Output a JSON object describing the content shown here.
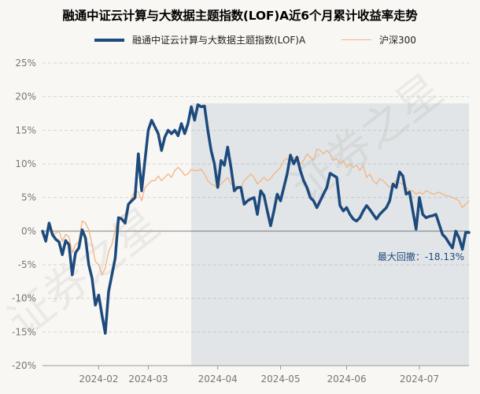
{
  "chart_data": {
    "type": "line",
    "title": "融通中证云计算与大数据主题指数(LOF)A近6个月累计收益率走势",
    "y_unit": "%",
    "ylim": [
      -20,
      25
    ],
    "yticks": [
      {
        "value": 25,
        "label": "25%"
      },
      {
        "value": 20,
        "label": "20%"
      },
      {
        "value": 15,
        "label": "15%"
      },
      {
        "value": 10,
        "label": "10%"
      },
      {
        "value": 5,
        "label": "5%"
      },
      {
        "value": 0,
        "label": "0%"
      },
      {
        "value": -5,
        "label": "-5%"
      },
      {
        "value": -10,
        "label": "-10%"
      },
      {
        "value": -15,
        "label": "-15%"
      },
      {
        "value": -20,
        "label": "-20%"
      }
    ],
    "n_points": 130,
    "xticks": [
      {
        "index": 17,
        "label": "2024-02"
      },
      {
        "index": 32,
        "label": "2024-03"
      },
      {
        "index": 53,
        "label": "2024-04"
      },
      {
        "index": 72,
        "label": "2024-05"
      },
      {
        "index": 92,
        "label": "2024-06"
      },
      {
        "index": 114,
        "label": "2024-07"
      }
    ],
    "drawdown": {
      "label": "最大回撤：-18.13%",
      "start_index": 45,
      "end_index": 130
    },
    "series": [
      {
        "name": "融通中证云计算与大数据主题指数(LOF)A",
        "color": "#1d4a7c",
        "values": [
          0.0,
          -1.5,
          1.2,
          -0.5,
          -1.2,
          -1.6,
          -3.5,
          -1.4,
          -2.0,
          -6.5,
          -3.2,
          -2.5,
          0.2,
          -1.0,
          -5.0,
          -7.0,
          -11.0,
          -9.5,
          -12.5,
          -15.2,
          -9.0,
          -6.5,
          -4.0,
          2.0,
          1.8,
          1.2,
          4.0,
          4.5,
          5.0,
          11.5,
          6.0,
          10.5,
          15.0,
          16.5,
          15.5,
          14.5,
          12.0,
          14.0,
          15.0,
          14.5,
          15.0,
          14.2,
          16.0,
          14.5,
          16.0,
          18.5,
          16.5,
          18.8,
          18.5,
          18.6,
          15.0,
          12.0,
          10.0,
          6.5,
          10.5,
          9.8,
          12.5,
          9.5,
          6.0,
          6.5,
          6.5,
          4.0,
          4.5,
          4.8,
          5.0,
          2.5,
          6.0,
          5.3,
          3.0,
          0.8,
          3.0,
          5.5,
          4.5,
          6.5,
          8.5,
          11.3,
          10.0,
          11.0,
          9.0,
          7.5,
          6.5,
          5.0,
          4.5,
          3.5,
          4.5,
          5.5,
          6.5,
          8.6,
          8.3,
          8.0,
          3.8,
          3.0,
          3.5,
          2.5,
          1.8,
          1.5,
          2.0,
          3.0,
          3.8,
          3.2,
          2.5,
          1.8,
          2.5,
          3.0,
          3.5,
          4.5,
          7.0,
          6.5,
          8.8,
          8.2,
          5.5,
          5.8,
          3.0,
          0.3,
          5.0,
          2.5,
          2.0,
          2.2,
          2.3,
          2.5,
          1.0,
          -0.5,
          -1.0,
          -1.8,
          -2.5,
          0.0,
          -1.0,
          -2.7,
          -0.2,
          -0.2
        ]
      },
      {
        "name": "沪深300",
        "color": "#f2b483",
        "values": [
          0.0,
          -0.8,
          0.5,
          -0.5,
          -0.3,
          0.0,
          -1.5,
          -0.5,
          -0.8,
          -3.2,
          -2.0,
          -1.6,
          1.5,
          1.2,
          0.2,
          -2.0,
          -4.5,
          -5.0,
          -6.5,
          -5.5,
          -3.0,
          -2.0,
          0.2,
          2.0,
          2.2,
          2.5,
          4.0,
          5.0,
          6.0,
          5.8,
          4.5,
          6.5,
          7.0,
          7.5,
          7.5,
          8.2,
          7.5,
          8.0,
          8.5,
          8.0,
          9.0,
          9.5,
          9.0,
          8.3,
          8.5,
          9.2,
          9.0,
          9.0,
          9.2,
          8.5,
          7.5,
          7.0,
          6.8,
          6.5,
          7.0,
          7.5,
          8.0,
          7.0,
          6.8,
          6.5,
          6.5,
          7.5,
          8.0,
          8.5,
          8.0,
          7.0,
          7.5,
          8.0,
          7.5,
          7.8,
          8.5,
          9.0,
          9.5,
          10.5,
          10.8,
          10.5,
          11.0,
          10.5,
          10.0,
          10.5,
          11.5,
          11.0,
          10.5,
          12.2,
          12.0,
          11.5,
          12.0,
          11.5,
          10.5,
          10.8,
          10.0,
          10.5,
          9.5,
          10.0,
          9.5,
          9.8,
          9.0,
          9.8,
          8.0,
          8.5,
          7.5,
          7.0,
          7.8,
          7.5,
          7.0,
          6.5,
          7.0,
          7.5,
          7.2,
          7.0,
          6.5,
          6.0,
          6.0,
          5.5,
          5.8,
          5.5,
          6.0,
          5.8,
          5.5,
          5.6,
          5.8,
          5.5,
          5.3,
          5.2,
          5.0,
          4.8,
          4.5,
          3.5,
          4.0,
          4.5
        ]
      }
    ]
  },
  "watermark": [
    "证券之星",
    "证券之星"
  ]
}
